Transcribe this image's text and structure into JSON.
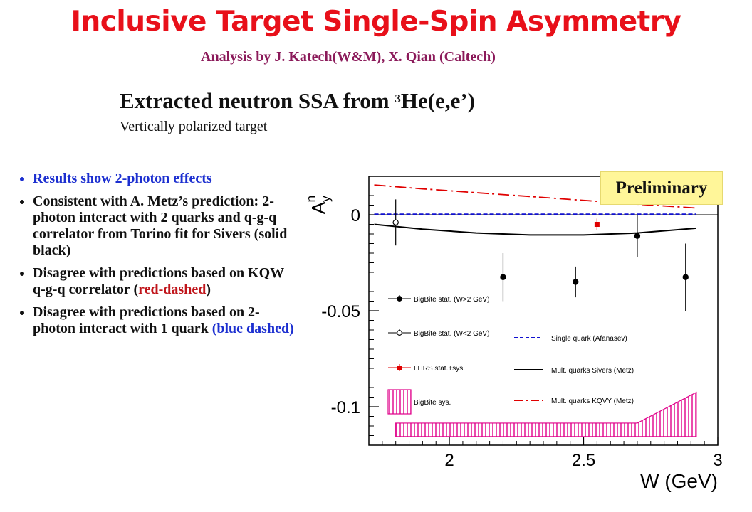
{
  "slide": {
    "title": "Inclusive Target Single-Spin Asymmetry",
    "subtitle": "Analysis by J. Katech(W&M), X. Qian (Caltech)",
    "heading_main": "Extracted neutron SSA from ",
    "heading_sup": "3",
    "heading_end": "He(e,e’)",
    "subheading": "Vertically polarized target",
    "badge": "Preliminary",
    "bullets": [
      {
        "text": "Results show 2-photon effects"
      },
      {
        "text": "Consistent with A. Metz’s prediction: 2-photon interact with 2 quarks and q-g-q correlator from Torino fit for Sivers (solid black)"
      },
      {
        "text": "Disagree with predictions based on KQW q-g-q correlator ",
        "paren": "red-dashed"
      },
      {
        "text": "Disagree with predictions based on 2-photon interact with 1 quark ",
        "paren": "blue dashed"
      }
    ],
    "colors": {
      "title": "#e8101a",
      "subtitle": "#8b1a5a",
      "blue_text": "#1c2fd0",
      "red_text": "#c0151b",
      "badge_bg": "#fff699"
    }
  },
  "chart_data": {
    "type": "scatter",
    "xlabel": "W (GeV)",
    "ylabel": "A_y^n",
    "xlim": [
      1.7,
      3.0
    ],
    "ylim": [
      -0.12,
      0.02
    ],
    "x_ticks": [
      2,
      2.5,
      3
    ],
    "x_tick_labels": [
      "2",
      "2.5",
      "3"
    ],
    "y_ticks": [
      0,
      -0.05,
      -0.1
    ],
    "y_tick_labels": [
      "0",
      "-0.05",
      "-0.1"
    ],
    "series": [
      {
        "name": "BigBite stat. (W>2 GeV)",
        "kind": "points",
        "marker": "filled-circle",
        "color": "#000000",
        "x": [
          2.2,
          2.47,
          2.7,
          2.88
        ],
        "y": [
          -0.0325,
          -0.035,
          -0.011,
          -0.0325
        ],
        "err": [
          0.0125,
          0.008,
          0.011,
          0.0175
        ]
      },
      {
        "name": "BigBite stat. (W<2 GeV)",
        "kind": "points",
        "marker": "open-circle",
        "color": "#000000",
        "x": [
          1.8
        ],
        "y": [
          -0.004
        ],
        "err": [
          0.012
        ]
      },
      {
        "name": "LHRS stat.+sys.",
        "kind": "points",
        "marker": "filled-square",
        "color": "#e00000",
        "x": [
          2.55
        ],
        "y": [
          -0.005
        ],
        "err": [
          0.003
        ]
      },
      {
        "name": "Single quark (Afanasev)",
        "kind": "line",
        "style": "dashed",
        "color": "#1010d0",
        "x": [
          1.72,
          2.0,
          2.5,
          2.92
        ],
        "y": [
          0.0003,
          0.0003,
          0.0003,
          0.0003
        ]
      },
      {
        "name": "Mult. quarks Sivers (Metz)",
        "kind": "line",
        "style": "solid",
        "color": "#000000",
        "x": [
          1.72,
          1.9,
          2.1,
          2.3,
          2.5,
          2.7,
          2.92
        ],
        "y": [
          -0.005,
          -0.0075,
          -0.0095,
          -0.0105,
          -0.0105,
          -0.0095,
          -0.007
        ]
      },
      {
        "name": "Mult. quarks KQVY (Metz)",
        "kind": "line",
        "style": "dash-dot",
        "color": "#e00000",
        "x": [
          1.72,
          1.9,
          2.1,
          2.3,
          2.5,
          2.7,
          2.92
        ],
        "y": [
          0.0155,
          0.0135,
          0.0115,
          0.0095,
          0.0075,
          0.0055,
          0.0035
        ]
      },
      {
        "name": "BigBite sys.",
        "kind": "band",
        "color": "#e0008a",
        "x": [
          1.8,
          2.7,
          2.92
        ],
        "y_top": [
          -0.1085,
          -0.1085,
          -0.0925
        ],
        "y_bottom": [
          -0.1155,
          -0.1155,
          -0.1155
        ]
      }
    ],
    "legend_order": [
      "BigBite stat. (W>2 GeV)",
      "BigBite stat. (W<2 GeV)",
      "LHRS stat.+sys.",
      "BigBite sys.",
      "Single quark (Afanasev)",
      "Mult. quarks Sivers (Metz)",
      "Mult. quarks KQVY (Metz)"
    ],
    "zero_line": true,
    "grid": false
  }
}
